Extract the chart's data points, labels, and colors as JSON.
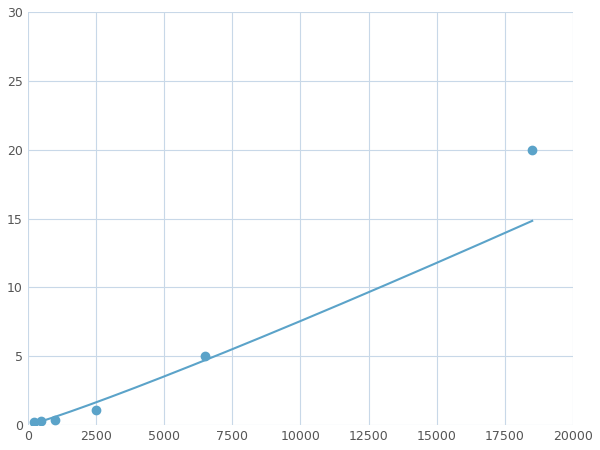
{
  "x_points": [
    250,
    500,
    1000,
    2500,
    6500,
    18500
  ],
  "y_points": [
    0.2,
    0.3,
    0.4,
    1.1,
    5.0,
    20.0
  ],
  "line_color": "#5ba3c9",
  "marker_color": "#5ba3c9",
  "marker_size": 6,
  "line_width": 1.5,
  "xlim": [
    0,
    20000
  ],
  "ylim": [
    0,
    30
  ],
  "xticks": [
    0,
    2500,
    5000,
    7500,
    10000,
    12500,
    15000,
    17500,
    20000
  ],
  "yticks": [
    0,
    5,
    10,
    15,
    20,
    25,
    30
  ],
  "grid_color": "#c8d8e8",
  "background_color": "#ffffff",
  "figsize": [
    6.0,
    4.5
  ],
  "dpi": 100
}
